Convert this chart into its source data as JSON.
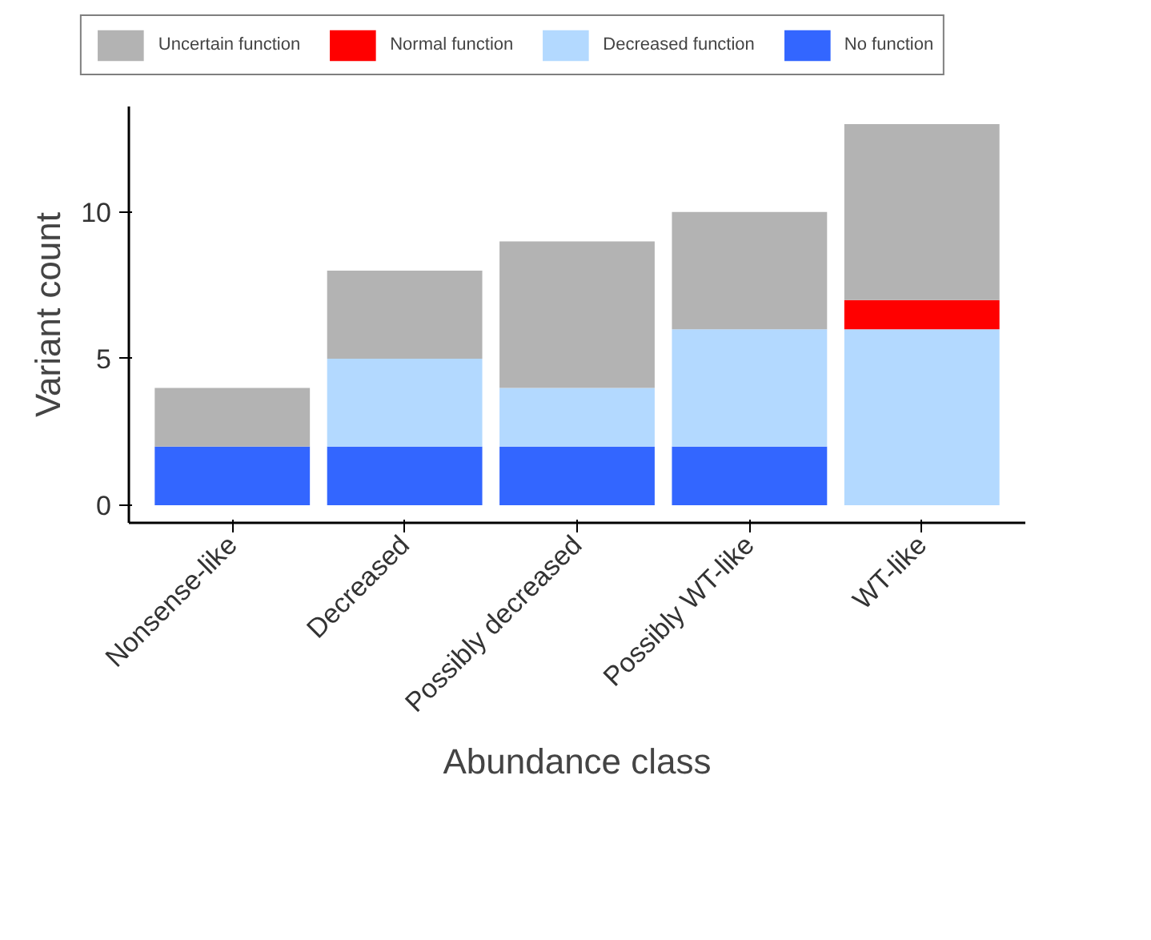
{
  "chart_data": {
    "type": "bar",
    "stacked": true,
    "xlabel": "Abundance class",
    "ylabel": "Variant count",
    "categories": [
      "Nonsense-like",
      "Decreased",
      "Possibly decreased",
      "Possibly WT-like",
      "WT-like"
    ],
    "series": [
      {
        "name": "No function",
        "color": "#3366ff",
        "values": [
          2,
          2,
          2,
          2,
          0
        ]
      },
      {
        "name": "Decreased function",
        "color": "#b3d9ff",
        "values": [
          0,
          3,
          2,
          4,
          6
        ]
      },
      {
        "name": "Normal function",
        "color": "#ff0000",
        "values": [
          0,
          0,
          0,
          0,
          1
        ]
      },
      {
        "name": "Uncertain function",
        "color": "#b3b3b3",
        "values": [
          2,
          3,
          5,
          4,
          6
        ]
      }
    ],
    "ylim": [
      -0.6,
      13.6
    ],
    "yticks": [
      0,
      5,
      10
    ],
    "grid": false,
    "legend": "top"
  }
}
